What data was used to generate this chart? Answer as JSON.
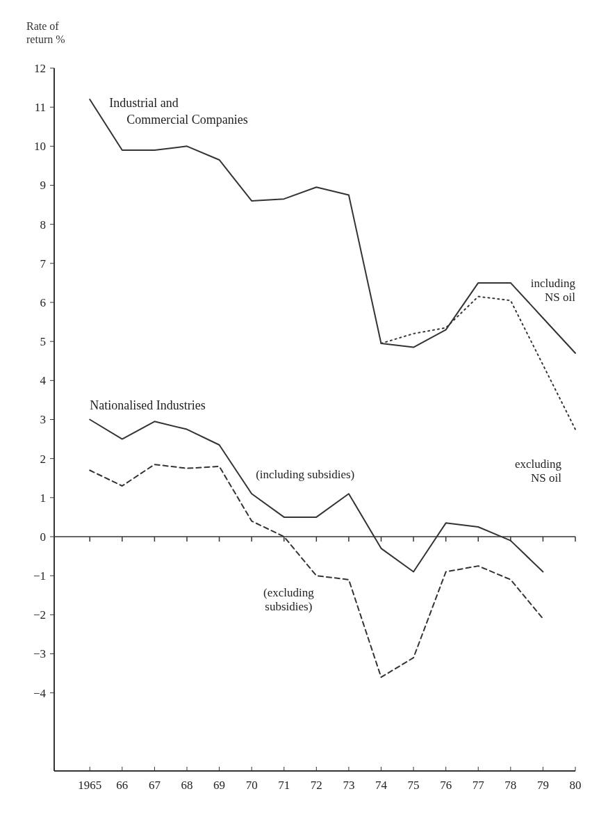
{
  "chart_data": {
    "type": "line",
    "ylabel": "Rate of return %",
    "x": [
      1965,
      1966,
      1967,
      1968,
      1969,
      1970,
      1971,
      1972,
      1973,
      1974,
      1975,
      1976,
      1977,
      1978,
      1979,
      1980
    ],
    "series": [
      {
        "name": "including NS oil",
        "color": "#333333",
        "line_style": "solid",
        "values": [
          11.2,
          9.9,
          9.9,
          10.0,
          9.65,
          8.6,
          8.65,
          8.95,
          8.75,
          4.95,
          4.85,
          5.3,
          6.5,
          6.5,
          5.6,
          4.7
        ]
      },
      {
        "name": "excluding NS oil",
        "color": "#333333",
        "line_style": "dotted",
        "x": [
          1974,
          1975,
          1976,
          1977,
          1978,
          1979,
          1980
        ],
        "values": [
          4.95,
          5.2,
          5.35,
          6.15,
          6.05,
          4.4,
          2.75
        ]
      },
      {
        "name": "(including subsidies)",
        "color": "#333333",
        "line_style": "solid",
        "x": [
          1965,
          1966,
          1967,
          1968,
          1969,
          1970,
          1971,
          1972,
          1973,
          1974,
          1975,
          1976,
          1977,
          1978,
          1979
        ],
        "values": [
          3.0,
          2.5,
          2.95,
          2.75,
          2.35,
          1.1,
          0.5,
          0.5,
          1.1,
          -0.3,
          -0.9,
          0.35,
          0.25,
          -0.1,
          -0.9
        ]
      },
      {
        "name": "(excluding subsidies)",
        "color": "#333333",
        "line_style": "dashed",
        "x": [
          1965,
          1966,
          1967,
          1968,
          1969,
          1970,
          1971,
          1972,
          1973,
          1974,
          1975,
          1976,
          1977,
          1978,
          1979
        ],
        "values": [
          1.7,
          1.3,
          1.85,
          1.75,
          1.8,
          0.4,
          0.0,
          -1.0,
          -1.1,
          -3.6,
          -3.1,
          -0.9,
          -0.75,
          -1.1,
          -2.1
        ]
      }
    ],
    "annotations": [
      "Industrial and Commercial Companies",
      "Nationalised Industries"
    ],
    "ref_lines": [
      {
        "axis": "y",
        "value": 0,
        "color": "#333333"
      }
    ],
    "xlim": [
      1963.9,
      1980
    ],
    "xticks": [
      1965,
      {
        "value": 1966,
        "label": "66"
      },
      {
        "value": 1967,
        "label": "67"
      },
      {
        "value": 1968,
        "label": "68"
      },
      {
        "value": 1969,
        "label": "69"
      },
      {
        "value": 1970,
        "label": "70"
      },
      {
        "value": 1971,
        "label": "71"
      },
      {
        "value": 1972,
        "label": "72"
      },
      {
        "value": 1973,
        "label": "73"
      },
      {
        "value": 1974,
        "label": "74"
      },
      {
        "value": 1975,
        "label": "75"
      },
      {
        "value": 1976,
        "label": "76"
      },
      {
        "value": 1977,
        "label": "77"
      },
      {
        "value": 1978,
        "label": "78"
      },
      {
        "value": 1979,
        "label": "79"
      },
      {
        "value": 1980,
        "label": "80"
      }
    ],
    "ylim": [
      -6,
      12
    ],
    "yticks": [
      {
        "value": -4,
        "label": "−4"
      },
      {
        "value": -3,
        "label": "−3"
      },
      {
        "value": -2,
        "label": "−2"
      },
      {
        "value": -1,
        "label": "−1"
      },
      0,
      1,
      2,
      3,
      4,
      5,
      6,
      7,
      8,
      9,
      10,
      11,
      12
    ],
    "grid": false
  }
}
